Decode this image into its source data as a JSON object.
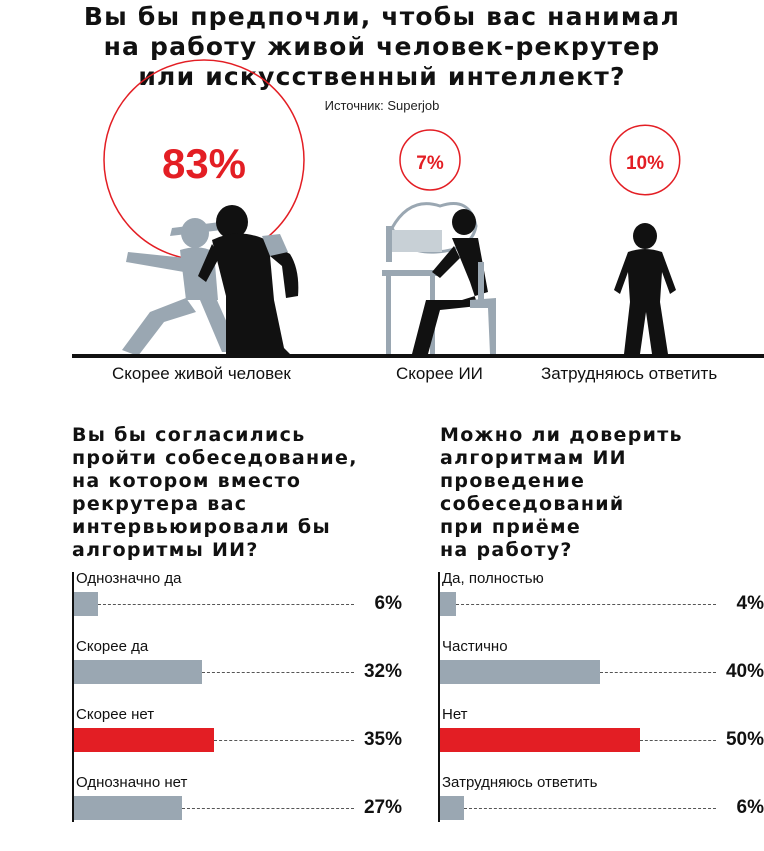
{
  "header": {
    "title_lines": [
      "Вы бы предпочли, чтобы вас нанимал",
      "на работу живой человек-рекрутер",
      "или искусственный интеллект?"
    ],
    "source": "Источник: Superjob"
  },
  "colors": {
    "red": "#e31e24",
    "grey": "#9aa7b2",
    "black": "#111111"
  },
  "icons": [
    "human-recruiter-figures-icon",
    "person-at-computer-icon",
    "standing-person-icon"
  ],
  "chart_data": [
    {
      "type": "bar",
      "title": "Вы бы предпочли, чтобы вас нанимал на работу живой человек-рекрутер или искусственный интеллект?",
      "categories": [
        "Скорее живой человек",
        "Скорее ИИ",
        "Затрудняюсь ответить"
      ],
      "values": [
        83,
        7,
        10
      ],
      "value_labels": [
        "83%",
        "7%",
        "10%"
      ],
      "encoding": "circle area"
    },
    {
      "type": "bar",
      "orientation": "horizontal",
      "title_lines": [
        "Вы бы согласились",
        "пройти собеседование,",
        "на котором вместо",
        "рекрутера вас",
        "интервьюировали бы",
        "алгоритмы ИИ?"
      ],
      "categories": [
        "Однозначно да",
        "Скорее да",
        "Скорее нет",
        "Однозначно нет"
      ],
      "values": [
        6,
        32,
        35,
        27
      ],
      "value_labels": [
        "6%",
        "32%",
        "35%",
        "27%"
      ],
      "highlight": [
        false,
        false,
        true,
        false
      ]
    },
    {
      "type": "bar",
      "orientation": "horizontal",
      "title_lines": [
        "Можно ли доверить",
        "алгоритмам ИИ",
        "проведение",
        "собеседований",
        "при приёме",
        "на работу?"
      ],
      "categories": [
        "Да, полностью",
        "Частично",
        "Нет",
        "Затрудняюсь ответить"
      ],
      "values": [
        4,
        40,
        50,
        6
      ],
      "value_labels": [
        "4%",
        "40%",
        "50%",
        "6%"
      ],
      "highlight": [
        false,
        false,
        true,
        false
      ]
    }
  ]
}
